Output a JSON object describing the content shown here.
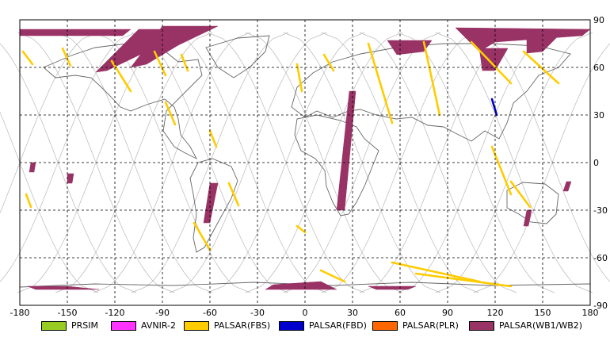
{
  "map": {
    "x_ticks": [
      "-180",
      "-150",
      "-120",
      "-90",
      "-60",
      "-30",
      "0",
      "30",
      "60",
      "90",
      "120",
      "150",
      "180"
    ],
    "y_ticks": [
      "90",
      "60",
      "30",
      "0",
      "-30",
      "-60",
      "-90"
    ]
  },
  "legend": [
    {
      "label": "PRSIM",
      "color": "#99cc22"
    },
    {
      "label": "AVNIR-2",
      "color": "#ff33ff"
    },
    {
      "label": "PALSAR(FBS)",
      "color": "#ffcc00"
    },
    {
      "label": "PALSAR(FBD)",
      "color": "#0000cc"
    },
    {
      "label": "PALSAR(PLR)",
      "color": "#ff6600"
    },
    {
      "label": "PALSAR(WB1/WB2)",
      "color": "#993366"
    }
  ],
  "chart_data": {
    "type": "map",
    "projection": "equirectangular",
    "xlim": [
      -180,
      180
    ],
    "ylim": [
      -90,
      90
    ],
    "grid": true,
    "series": [
      {
        "mode": "PALSAR(WB1/WB2)",
        "color": "#993366",
        "swaths": [
          [
            [
              -180,
              84
            ],
            [
              -110,
              84
            ],
            [
              -115,
              80
            ],
            [
              -180,
              80
            ]
          ],
          [
            [
              -105,
              84
            ],
            [
              -80,
              84
            ],
            [
              -100,
              70
            ],
            [
              -125,
              58
            ],
            [
              -132,
              57
            ]
          ],
          [
            [
              -90,
              86
            ],
            [
              -55,
              86
            ],
            [
              -80,
              74
            ],
            [
              -100,
              62
            ],
            [
              -110,
              60
            ]
          ],
          [
            [
              95,
              85
            ],
            [
              180,
              84
            ],
            [
              175,
              80
            ],
            [
              120,
              76
            ],
            [
              110,
              70
            ]
          ],
          [
            [
              110,
              72
            ],
            [
              128,
              72
            ],
            [
              120,
              58
            ],
            [
              112,
              58
            ]
          ],
          [
            [
              140,
              80
            ],
            [
              160,
              80
            ],
            [
              150,
              70
            ],
            [
              140,
              69
            ]
          ],
          [
            [
              52,
              77
            ],
            [
              80,
              77
            ],
            [
              75,
              70
            ],
            [
              58,
              68
            ]
          ],
          [
            [
              28,
              45
            ],
            [
              32,
              45
            ],
            [
              25,
              -30
            ],
            [
              20,
              -30
            ]
          ],
          [
            [
              -60,
              -13
            ],
            [
              -55,
              -13
            ],
            [
              -60,
              -38
            ],
            [
              -64,
              -38
            ]
          ],
          [
            [
              -173,
              0
            ],
            [
              -170,
              0
            ],
            [
              -171,
              -6
            ],
            [
              -174,
              -6
            ]
          ],
          [
            [
              -150,
              -7
            ],
            [
              -146,
              -7
            ],
            [
              -147,
              -13
            ],
            [
              -150,
              -13
            ]
          ],
          [
            [
              140,
              -30
            ],
            [
              143,
              -30
            ],
            [
              141,
              -40
            ],
            [
              138,
              -40
            ]
          ],
          [
            [
              165,
              -12
            ],
            [
              168,
              -12
            ],
            [
              166,
              -18
            ],
            [
              163,
              -18
            ]
          ],
          [
            [
              -175,
              -78
            ],
            [
              -150,
              -78
            ],
            [
              -130,
              -80
            ],
            [
              -170,
              -80
            ]
          ],
          [
            [
              -20,
              -77
            ],
            [
              10,
              -75
            ],
            [
              20,
              -80
            ],
            [
              -25,
              -80
            ]
          ],
          [
            [
              40,
              -78
            ],
            [
              70,
              -78
            ],
            [
              65,
              -80
            ],
            [
              45,
              -80
            ]
          ]
        ]
      },
      {
        "mode": "PALSAR(FBS)",
        "color": "#ffcc00",
        "tracks": [
          [
            [
              -178,
              70
            ],
            [
              -172,
              62
            ]
          ],
          [
            [
              -153,
              72
            ],
            [
              -148,
              61
            ]
          ],
          [
            [
              -122,
              64
            ],
            [
              -110,
              45
            ]
          ],
          [
            [
              -95,
              70
            ],
            [
              -88,
              55
            ]
          ],
          [
            [
              -88,
              38
            ],
            [
              -82,
              24
            ]
          ],
          [
            [
              -60,
              20
            ],
            [
              -56,
              10
            ]
          ],
          [
            [
              -78,
              68
            ],
            [
              -74,
              58
            ]
          ],
          [
            [
              -48,
              -13
            ],
            [
              -42,
              -27
            ]
          ],
          [
            [
              -70,
              -38
            ],
            [
              -60,
              -55
            ]
          ],
          [
            [
              -5,
              62
            ],
            [
              -2,
              45
            ]
          ],
          [
            [
              12,
              68
            ],
            [
              18,
              58
            ]
          ],
          [
            [
              40,
              75
            ],
            [
              55,
              25
            ]
          ],
          [
            [
              75,
              76
            ],
            [
              85,
              30
            ]
          ],
          [
            [
              105,
              76
            ],
            [
              130,
              50
            ]
          ],
          [
            [
              138,
              70
            ],
            [
              160,
              50
            ]
          ],
          [
            [
              118,
              10
            ],
            [
              130,
              -20
            ]
          ],
          [
            [
              130,
              -12
            ],
            [
              142,
              -28
            ]
          ],
          [
            [
              55,
              -63
            ],
            [
              110,
              -75
            ]
          ],
          [
            [
              70,
              -70
            ],
            [
              130,
              -78
            ]
          ],
          [
            [
              10,
              -68
            ],
            [
              25,
              -75
            ]
          ],
          [
            [
              -176,
              -20
            ],
            [
              -173,
              -28
            ]
          ],
          [
            [
              -5,
              -40
            ],
            [
              0,
              -44
            ]
          ]
        ]
      },
      {
        "mode": "PALSAR(FBD)",
        "color": "#0000cc",
        "tracks": [
          [
            [
              118,
              40
            ],
            [
              121,
              30
            ]
          ]
        ]
      }
    ]
  }
}
